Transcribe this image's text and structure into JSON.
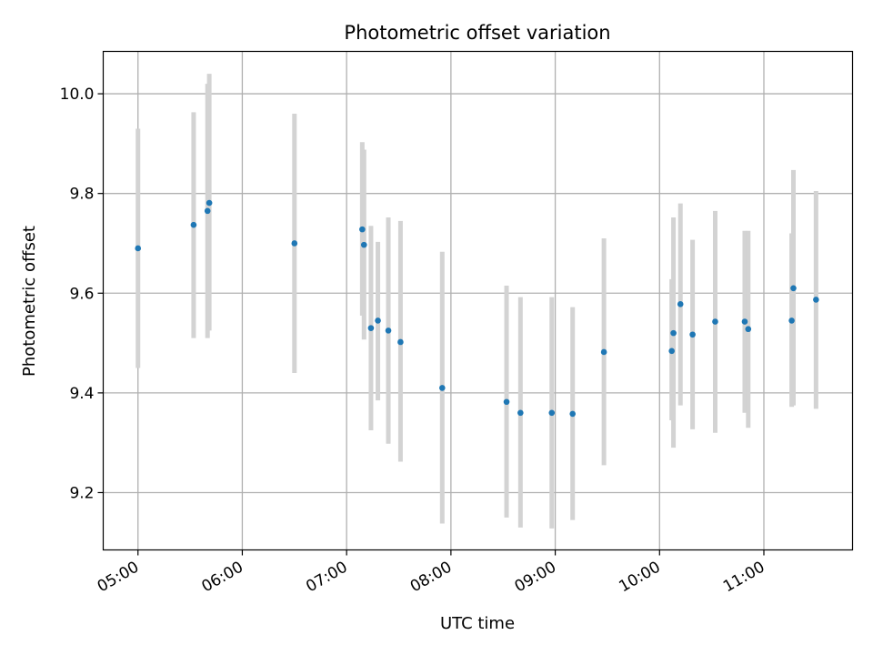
{
  "chart_data": {
    "type": "scatter",
    "title": "Photometric offset variation",
    "xlabel": "UTC time",
    "ylabel": "Photometric offset",
    "x_ticks": [
      "05:00",
      "06:00",
      "07:00",
      "08:00",
      "09:00",
      "10:00",
      "11:00"
    ],
    "y_ticks": [
      "9.2",
      "9.4",
      "9.6",
      "9.8",
      "10.0"
    ],
    "xlim": [
      "04:40",
      "11:51"
    ],
    "ylim": [
      9.085,
      10.085
    ],
    "grid": true,
    "colors": {
      "point": "#1f77b4",
      "errorbar": "#d3d3d3",
      "grid": "#b0b0b0"
    },
    "series": [
      {
        "points": [
          {
            "x": "05:00",
            "y": 9.69,
            "ylo": 9.45,
            "yhi": 9.93
          },
          {
            "x": "05:32",
            "y": 9.737,
            "ylo": 9.51,
            "yhi": 9.963
          },
          {
            "x": "05:40",
            "y": 9.765,
            "ylo": 9.51,
            "yhi": 10.02
          },
          {
            "x": "05:41",
            "y": 9.781,
            "ylo": 9.525,
            "yhi": 10.04
          },
          {
            "x": "06:30",
            "y": 9.7,
            "ylo": 9.44,
            "yhi": 9.96
          },
          {
            "x": "07:09",
            "y": 9.728,
            "ylo": 9.555,
            "yhi": 9.903
          },
          {
            "x": "07:10",
            "y": 9.697,
            "ylo": 9.507,
            "yhi": 9.888
          },
          {
            "x": "07:14",
            "y": 9.53,
            "ylo": 9.325,
            "yhi": 9.735
          },
          {
            "x": "07:18",
            "y": 9.545,
            "ylo": 9.385,
            "yhi": 9.703
          },
          {
            "x": "07:24",
            "y": 9.525,
            "ylo": 9.298,
            "yhi": 9.752
          },
          {
            "x": "07:31",
            "y": 9.502,
            "ylo": 9.262,
            "yhi": 9.745
          },
          {
            "x": "07:55",
            "y": 9.41,
            "ylo": 9.138,
            "yhi": 9.683
          },
          {
            "x": "08:32",
            "y": 9.382,
            "ylo": 9.15,
            "yhi": 9.615
          },
          {
            "x": "08:40",
            "y": 9.36,
            "ylo": 9.13,
            "yhi": 9.592
          },
          {
            "x": "08:58",
            "y": 9.36,
            "ylo": 9.128,
            "yhi": 9.592
          },
          {
            "x": "09:10",
            "y": 9.358,
            "ylo": 9.145,
            "yhi": 9.572
          },
          {
            "x": "09:28",
            "y": 9.482,
            "ylo": 9.255,
            "yhi": 9.71
          },
          {
            "x": "10:07",
            "y": 9.484,
            "ylo": 9.345,
            "yhi": 9.628
          },
          {
            "x": "10:08",
            "y": 9.52,
            "ylo": 9.29,
            "yhi": 9.752
          },
          {
            "x": "10:12",
            "y": 9.578,
            "ylo": 9.375,
            "yhi": 9.78
          },
          {
            "x": "10:19",
            "y": 9.517,
            "ylo": 9.327,
            "yhi": 9.707
          },
          {
            "x": "10:32",
            "y": 9.543,
            "ylo": 9.32,
            "yhi": 9.765
          },
          {
            "x": "10:49",
            "y": 9.543,
            "ylo": 9.36,
            "yhi": 9.725
          },
          {
            "x": "10:51",
            "y": 9.528,
            "ylo": 9.33,
            "yhi": 9.725
          },
          {
            "x": "11:16",
            "y": 9.545,
            "ylo": 9.372,
            "yhi": 9.72
          },
          {
            "x": "11:17",
            "y": 9.61,
            "ylo": 9.375,
            "yhi": 9.847
          },
          {
            "x": "11:30",
            "y": 9.587,
            "ylo": 9.368,
            "yhi": 9.805
          }
        ]
      }
    ]
  }
}
